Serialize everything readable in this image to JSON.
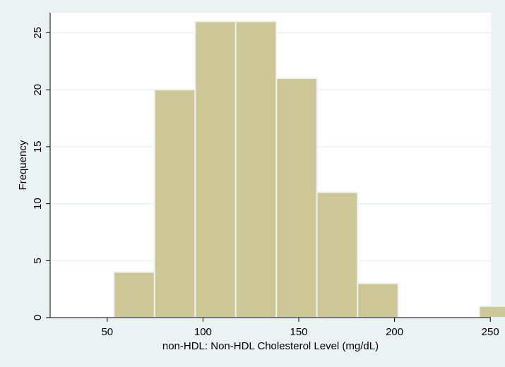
{
  "chart_data": {
    "type": "bar",
    "xlabel": "non-HDL: Non-HDL Cholesterol Level (mg/dL)",
    "ylabel": "Frequency",
    "xlim": [
      40,
      275
    ],
    "ylim": [
      0,
      26
    ],
    "grid": true,
    "x_ticks": [
      50,
      100,
      150,
      200,
      250
    ],
    "y_ticks": [
      0,
      5,
      10,
      15,
      20,
      25
    ],
    "bins": [
      {
        "start": 53.5,
        "end": 74.7,
        "value": 4
      },
      {
        "start": 74.7,
        "end": 95.9,
        "value": 20
      },
      {
        "start": 95.9,
        "end": 117.1,
        "value": 26
      },
      {
        "start": 117.1,
        "end": 138.3,
        "value": 26
      },
      {
        "start": 138.3,
        "end": 159.5,
        "value": 21
      },
      {
        "start": 159.5,
        "end": 180.7,
        "value": 11
      },
      {
        "start": 180.7,
        "end": 201.9,
        "value": 3
      },
      {
        "start": 201.9,
        "end": 223.1,
        "value": 0
      },
      {
        "start": 223.1,
        "end": 244.3,
        "value": 0
      },
      {
        "start": 244.3,
        "end": 265.5,
        "value": 1
      }
    ],
    "colors": {
      "bar_fill": "#cdc696",
      "bar_edge": "#eaf2f3",
      "plot_bg": "#ffffff",
      "outer_bg": "#eaf2f3",
      "grid": "#e3ecee",
      "axis": "#000000"
    }
  }
}
